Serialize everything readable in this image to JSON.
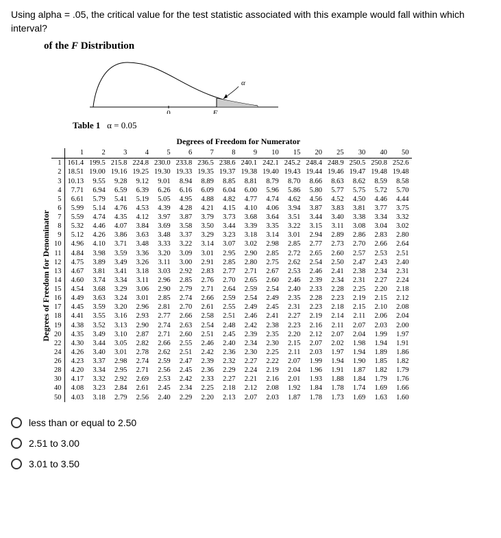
{
  "question": "Using alpha = .05, the critical value for the test statistic associated with this example would fall within which interval?",
  "dist_header_prefix": "of the ",
  "dist_header_f": "F",
  "dist_header_suffix": " Distribution",
  "table_label_bold": "Table 1",
  "table_label_alpha": "α = 0.05",
  "numerator_header": "Degrees of Freedom for Numerator",
  "denominator_header": "Degrees of Freedom for Denominator",
  "curve": {
    "alpha_sym": "α",
    "F_sym": "F",
    "zero_sym": "0"
  },
  "columns": [
    "1",
    "2",
    "3",
    "4",
    "5",
    "6",
    "7",
    "8",
    "9",
    "10",
    "15",
    "20",
    "25",
    "30",
    "40",
    "50"
  ],
  "rows": [
    {
      "h": "1",
      "v": [
        "161.4",
        "199.5",
        "215.8",
        "224.8",
        "230.0",
        "233.8",
        "236.5",
        "238.6",
        "240.1",
        "242.1",
        "245.2",
        "248.4",
        "248.9",
        "250.5",
        "250.8",
        "252.6"
      ]
    },
    {
      "h": "2",
      "v": [
        "18.51",
        "19.00",
        "19.16",
        "19.25",
        "19.30",
        "19.33",
        "19.35",
        "19.37",
        "19.38",
        "19.40",
        "19.43",
        "19.44",
        "19.46",
        "19.47",
        "19.48",
        "19.48"
      ]
    },
    {
      "h": "3",
      "v": [
        "10.13",
        "9.55",
        "9.28",
        "9.12",
        "9.01",
        "8.94",
        "8.89",
        "8.85",
        "8.81",
        "8.79",
        "8.70",
        "8.66",
        "8.63",
        "8.62",
        "8.59",
        "8.58"
      ]
    },
    {
      "h": "4",
      "v": [
        "7.71",
        "6.94",
        "6.59",
        "6.39",
        "6.26",
        "6.16",
        "6.09",
        "6.04",
        "6.00",
        "5.96",
        "5.86",
        "5.80",
        "5.77",
        "5.75",
        "5.72",
        "5.70"
      ]
    },
    {
      "h": "5",
      "v": [
        "6.61",
        "5.79",
        "5.41",
        "5.19",
        "5.05",
        "4.95",
        "4.88",
        "4.82",
        "4.77",
        "4.74",
        "4.62",
        "4.56",
        "4.52",
        "4.50",
        "4.46",
        "4.44"
      ]
    },
    {
      "h": "6",
      "v": [
        "5.99",
        "5.14",
        "4.76",
        "4.53",
        "4.39",
        "4.28",
        "4.21",
        "4.15",
        "4.10",
        "4.06",
        "3.94",
        "3.87",
        "3.83",
        "3.81",
        "3.77",
        "3.75"
      ]
    },
    {
      "h": "7",
      "v": [
        "5.59",
        "4.74",
        "4.35",
        "4.12",
        "3.97",
        "3.87",
        "3.79",
        "3.73",
        "3.68",
        "3.64",
        "3.51",
        "3.44",
        "3.40",
        "3.38",
        "3.34",
        "3.32"
      ]
    },
    {
      "h": "8",
      "v": [
        "5.32",
        "4.46",
        "4.07",
        "3.84",
        "3.69",
        "3.58",
        "3.50",
        "3.44",
        "3.39",
        "3.35",
        "3.22",
        "3.15",
        "3.11",
        "3.08",
        "3.04",
        "3.02"
      ]
    },
    {
      "h": "9",
      "v": [
        "5.12",
        "4.26",
        "3.86",
        "3.63",
        "3.48",
        "3.37",
        "3.29",
        "3.23",
        "3.18",
        "3.14",
        "3.01",
        "2.94",
        "2.89",
        "2.86",
        "2.83",
        "2.80"
      ]
    },
    {
      "h": "10",
      "v": [
        "4.96",
        "4.10",
        "3.71",
        "3.48",
        "3.33",
        "3.22",
        "3.14",
        "3.07",
        "3.02",
        "2.98",
        "2.85",
        "2.77",
        "2.73",
        "2.70",
        "2.66",
        "2.64"
      ]
    },
    {
      "h": "11",
      "v": [
        "4.84",
        "3.98",
        "3.59",
        "3.36",
        "3.20",
        "3.09",
        "3.01",
        "2.95",
        "2.90",
        "2.85",
        "2.72",
        "2.65",
        "2.60",
        "2.57",
        "2.53",
        "2.51"
      ]
    },
    {
      "h": "12",
      "v": [
        "4.75",
        "3.89",
        "3.49",
        "3.26",
        "3.11",
        "3.00",
        "2.91",
        "2.85",
        "2.80",
        "2.75",
        "2.62",
        "2.54",
        "2.50",
        "2.47",
        "2.43",
        "2.40"
      ]
    },
    {
      "h": "13",
      "v": [
        "4.67",
        "3.81",
        "3.41",
        "3.18",
        "3.03",
        "2.92",
        "2.83",
        "2.77",
        "2.71",
        "2.67",
        "2.53",
        "2.46",
        "2.41",
        "2.38",
        "2.34",
        "2.31"
      ]
    },
    {
      "h": "14",
      "v": [
        "4.60",
        "3.74",
        "3.34",
        "3.11",
        "2.96",
        "2.85",
        "2.76",
        "2.70",
        "2.65",
        "2.60",
        "2.46",
        "2.39",
        "2.34",
        "2.31",
        "2.27",
        "2.24"
      ]
    },
    {
      "h": "15",
      "v": [
        "4.54",
        "3.68",
        "3.29",
        "3.06",
        "2.90",
        "2.79",
        "2.71",
        "2.64",
        "2.59",
        "2.54",
        "2.40",
        "2.33",
        "2.28",
        "2.25",
        "2.20",
        "2.18"
      ]
    },
    {
      "h": "16",
      "v": [
        "4.49",
        "3.63",
        "3.24",
        "3.01",
        "2.85",
        "2.74",
        "2.66",
        "2.59",
        "2.54",
        "2.49",
        "2.35",
        "2.28",
        "2.23",
        "2.19",
        "2.15",
        "2.12"
      ]
    },
    {
      "h": "17",
      "v": [
        "4.45",
        "3.59",
        "3.20",
        "2.96",
        "2.81",
        "2.70",
        "2.61",
        "2.55",
        "2.49",
        "2.45",
        "2.31",
        "2.23",
        "2.18",
        "2.15",
        "2.10",
        "2.08"
      ]
    },
    {
      "h": "18",
      "v": [
        "4.41",
        "3.55",
        "3.16",
        "2.93",
        "2.77",
        "2.66",
        "2.58",
        "2.51",
        "2.46",
        "2.41",
        "2.27",
        "2.19",
        "2.14",
        "2.11",
        "2.06",
        "2.04"
      ]
    },
    {
      "h": "19",
      "v": [
        "4.38",
        "3.52",
        "3.13",
        "2.90",
        "2.74",
        "2.63",
        "2.54",
        "2.48",
        "2.42",
        "2.38",
        "2.23",
        "2.16",
        "2.11",
        "2.07",
        "2.03",
        "2.00"
      ]
    },
    {
      "h": "20",
      "v": [
        "4.35",
        "3.49",
        "3.10",
        "2.87",
        "2.71",
        "2.60",
        "2.51",
        "2.45",
        "2.39",
        "2.35",
        "2.20",
        "2.12",
        "2.07",
        "2.04",
        "1.99",
        "1.97"
      ]
    },
    {
      "h": "22",
      "v": [
        "4.30",
        "3.44",
        "3.05",
        "2.82",
        "2.66",
        "2.55",
        "2.46",
        "2.40",
        "2.34",
        "2.30",
        "2.15",
        "2.07",
        "2.02",
        "1.98",
        "1.94",
        "1.91"
      ]
    },
    {
      "h": "24",
      "v": [
        "4.26",
        "3.40",
        "3.01",
        "2.78",
        "2.62",
        "2.51",
        "2.42",
        "2.36",
        "2.30",
        "2.25",
        "2.11",
        "2.03",
        "1.97",
        "1.94",
        "1.89",
        "1.86"
      ]
    },
    {
      "h": "26",
      "v": [
        "4.23",
        "3.37",
        "2.98",
        "2.74",
        "2.59",
        "2.47",
        "2.39",
        "2.32",
        "2.27",
        "2.22",
        "2.07",
        "1.99",
        "1.94",
        "1.90",
        "1.85",
        "1.82"
      ]
    },
    {
      "h": "28",
      "v": [
        "4.20",
        "3.34",
        "2.95",
        "2.71",
        "2.56",
        "2.45",
        "2.36",
        "2.29",
        "2.24",
        "2.19",
        "2.04",
        "1.96",
        "1.91",
        "1.87",
        "1.82",
        "1.79"
      ]
    },
    {
      "h": "30",
      "v": [
        "4.17",
        "3.32",
        "2.92",
        "2.69",
        "2.53",
        "2.42",
        "2.33",
        "2.27",
        "2.21",
        "2.16",
        "2.01",
        "1.93",
        "1.88",
        "1.84",
        "1.79",
        "1.76"
      ]
    },
    {
      "h": "40",
      "v": [
        "4.08",
        "3.23",
        "2.84",
        "2.61",
        "2.45",
        "2.34",
        "2.25",
        "2.18",
        "2.12",
        "2.08",
        "1.92",
        "1.84",
        "1.78",
        "1.74",
        "1.69",
        "1.66"
      ]
    },
    {
      "h": "50",
      "v": [
        "4.03",
        "3.18",
        "2.79",
        "2.56",
        "2.40",
        "2.29",
        "2.20",
        "2.13",
        "2.07",
        "2.03",
        "1.87",
        "1.78",
        "1.73",
        "1.69",
        "1.63",
        "1.60"
      ]
    }
  ],
  "options": [
    "less than or equal to 2.50",
    "2.51 to 3.00",
    "3.01 to 3.50"
  ]
}
